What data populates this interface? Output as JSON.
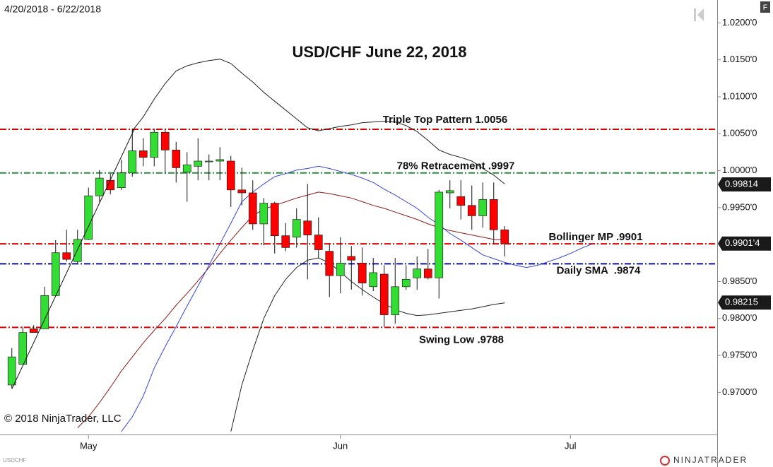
{
  "chart_data": {
    "type": "candlestick",
    "title": "USD/CHF June 22, 2018",
    "date_range": "4/20/2018 - 6/22/2018",
    "copyright": "© 2018 NinjaTrader, LLC",
    "symbol": "USDCHF",
    "logo": "NINJATRADER",
    "panel_button": "F",
    "categories": [
      null,
      null,
      null,
      null,
      null,
      null,
      null,
      "May",
      null,
      null,
      null,
      null,
      null,
      null,
      null,
      null,
      null,
      null,
      null,
      null,
      null,
      null,
      null,
      null,
      null,
      null,
      null,
      null,
      null,
      null,
      "Jun",
      null,
      null,
      null,
      null,
      null,
      null,
      null,
      null,
      null,
      null,
      null,
      null,
      null,
      null,
      null,
      null,
      null,
      null,
      null,
      null,
      "Jul",
      null,
      null,
      null,
      null,
      null,
      null,
      null,
      null,
      null,
      null,
      null,
      null,
      null
    ],
    "ylim": [
      0.9643,
      1.0231
    ],
    "yticks": [
      {
        "value": 1.02,
        "label": "1.0200'0"
      },
      {
        "value": 1.015,
        "label": "1.0150'0"
      },
      {
        "value": 1.01,
        "label": "1.0100'0"
      },
      {
        "value": 1.005,
        "label": "1.0050'0"
      },
      {
        "value": 1.0,
        "label": "1.0000'0"
      },
      {
        "value": 0.995,
        "label": "0.9950'0"
      },
      {
        "value": 0.985,
        "label": "0.9850'0"
      },
      {
        "value": 0.98,
        "label": "0.9800'0"
      },
      {
        "value": 0.975,
        "label": "0.9750'0"
      },
      {
        "value": 0.97,
        "label": "0.9700'0"
      }
    ],
    "candles": {
      "up_color": "#33dd33",
      "down_color": "#ff0000",
      "open": [
        0.971,
        0.9738,
        0.9786,
        0.9786,
        0.9831,
        0.9889,
        0.9877,
        0.9907,
        0.9966,
        0.9987,
        0.9977,
        0.9997,
        1.0027,
        1.0018,
        1.0052,
        1.0028,
        0.9998,
        1.0006,
        1.0012,
        1.0013,
        1.0013,
        0.9974,
        0.997,
        0.9928,
        0.9956,
        0.9912,
        0.991,
        0.9932,
        0.9913,
        0.9891,
        0.9858,
        0.9884,
        0.9875,
        0.9843,
        0.986,
        0.9805,
        0.9843,
        0.9855,
        0.9867,
        0.9855,
        0.997,
        0.9965,
        0.9953,
        0.9939,
        0.9961,
        0.992,
        null,
        null,
        null,
        null,
        null,
        null,
        null,
        null,
        null,
        null,
        null,
        null,
        null,
        null,
        null,
        null,
        null,
        null,
        null
      ],
      "high": [
        0.976,
        0.9789,
        0.9791,
        0.9843,
        0.9906,
        0.992,
        0.992,
        0.9977,
        1.0001,
        0.9996,
        1.0015,
        1.0057,
        1.0044,
        1.0057,
        1.0056,
        1.0039,
        1.0025,
        1.0044,
        1.0022,
        1.0032,
        1.002,
        1.0004,
        0.9987,
        0.9963,
        0.9958,
        0.9929,
        0.9949,
        0.9982,
        0.9937,
        0.9901,
        0.991,
        0.9898,
        0.9896,
        0.9882,
        0.9872,
        0.9882,
        0.9872,
        0.9884,
        0.9894,
        0.9974,
        0.9987,
        0.9987,
        0.998,
        0.9984,
        0.9984,
        0.9925,
        null,
        null,
        null,
        null,
        null,
        null,
        null,
        null,
        null,
        null,
        null,
        null,
        null,
        null,
        null,
        null,
        null,
        null,
        null
      ],
      "low": [
        0.9705,
        0.9738,
        0.9781,
        0.9786,
        0.9831,
        0.9877,
        0.9875,
        0.9906,
        0.9958,
        0.9968,
        0.9974,
        0.9992,
        1.0006,
        1.0006,
        0.9996,
        0.9984,
        0.9958,
        0.9987,
        0.9987,
        0.9987,
        0.9951,
        0.9953,
        0.992,
        0.9899,
        0.9888,
        0.9891,
        0.9896,
        0.9853,
        0.9882,
        0.9829,
        0.9834,
        0.9839,
        0.9831,
        0.9837,
        0.9789,
        0.9793,
        0.9839,
        0.9839,
        0.9853,
        0.9827,
        0.9949,
        0.9934,
        0.992,
        0.9923,
        0.9901,
        0.9884,
        null,
        null,
        null,
        null,
        null,
        null,
        null,
        null,
        null,
        null,
        null,
        null,
        null,
        null,
        null,
        null,
        null,
        null,
        null
      ],
      "close": [
        0.9748,
        0.9781,
        0.9781,
        0.9831,
        0.9889,
        0.988,
        0.9907,
        0.9966,
        0.999,
        0.9974,
        0.9997,
        1.0027,
        1.0018,
        1.0052,
        1.0028,
        1.0004,
        1.0008,
        1.0013,
        1.0013,
        1.0015,
        0.9974,
        0.997,
        0.9928,
        0.9956,
        0.9912,
        0.9896,
        0.9934,
        0.9913,
        0.9893,
        0.9858,
        0.9875,
        0.9879,
        0.9848,
        0.9862,
        0.9805,
        0.9843,
        0.9853,
        0.9867,
        0.9855,
        0.9971,
        0.9973,
        0.9953,
        0.9939,
        0.9961,
        0.992,
        0.9901,
        null,
        null,
        null,
        null,
        null,
        null,
        null,
        null,
        null,
        null,
        null,
        null,
        null,
        null,
        null,
        null,
        null,
        null,
        null
      ]
    },
    "overlays": [
      {
        "color": "#222222",
        "values": [
          null,
          null,
          null,
          null,
          null,
          null,
          null,
          null,
          null,
          null,
          null,
          1.0054,
          1.0073,
          1.0097,
          1.0118,
          1.0135,
          1.0142,
          1.0146,
          1.0149,
          1.0151,
          1.0145,
          1.0132,
          1.012,
          1.0106,
          1.0094,
          1.0082,
          1.007,
          1.0058,
          1.0054,
          1.0057,
          1.006,
          1.0062,
          1.0065,
          1.0066,
          1.0067,
          1.0066,
          1.0061,
          1.0053,
          1.0041,
          1.0028,
          1.0022,
          1.0018,
          1.0013,
          1.0003,
          0.9994,
          0.9982,
          null,
          null,
          null,
          null,
          null,
          null,
          null,
          null,
          null,
          null,
          null,
          null,
          null,
          null,
          null,
          null,
          null,
          null,
          null
        ]
      },
      {
        "color": "#222222",
        "values": [
          null,
          null,
          null,
          null,
          null,
          null,
          null,
          null,
          null,
          null,
          null,
          null,
          null,
          null,
          null,
          null,
          null,
          null,
          null,
          null,
          0.9647,
          0.971,
          0.9757,
          0.98,
          0.9831,
          0.9853,
          0.9869,
          0.9879,
          0.9882,
          0.9875,
          0.9863,
          0.985,
          0.9839,
          0.9829,
          0.982,
          0.9812,
          0.9807,
          0.9804,
          0.9805,
          0.9807,
          0.9809,
          0.9811,
          0.9813,
          0.9816,
          0.9819,
          0.9821,
          null,
          null,
          null,
          null,
          null,
          null,
          null,
          null,
          null,
          null,
          null,
          null,
          null,
          null,
          null,
          null,
          null,
          null,
          null
        ]
      },
      {
        "color": "#8b1a1a",
        "values": [
          null,
          null,
          null,
          null,
          null,
          null,
          0.9652,
          0.9667,
          0.9686,
          0.9707,
          0.9729,
          0.9748,
          0.9767,
          0.9784,
          0.98,
          0.9818,
          0.9834,
          0.9851,
          0.9869,
          0.9888,
          0.9906,
          0.9923,
          0.9939,
          0.9948,
          0.9953,
          0.9958,
          0.9963,
          0.9967,
          0.9971,
          0.9969,
          0.9966,
          0.9963,
          0.9958,
          0.9953,
          0.9949,
          0.9944,
          0.9939,
          0.9934,
          0.9928,
          0.9923,
          0.9919,
          0.9916,
          0.9913,
          0.991,
          0.9907,
          0.9906,
          null,
          null,
          null,
          null,
          null,
          null,
          null,
          null,
          null,
          null,
          null,
          null,
          null,
          null,
          null,
          null,
          null,
          null,
          null
        ]
      },
      {
        "color": "#3344dd",
        "values": [
          null,
          null,
          null,
          null,
          null,
          null,
          null,
          null,
          null,
          null,
          0.9647,
          0.9667,
          0.9695,
          0.9733,
          0.9762,
          0.9789,
          0.9817,
          0.9844,
          0.9872,
          0.9901,
          0.9929,
          0.9958,
          0.9971,
          0.9982,
          0.9992,
          0.9996,
          1.0001,
          1.0003,
          1.0006,
          1.0003,
          0.9999,
          0.9995,
          0.999,
          0.9984,
          0.9975,
          0.9967,
          0.9958,
          0.9949,
          0.9937,
          0.9927,
          0.9915,
          0.9906,
          0.9896,
          0.9886,
          0.9881,
          0.9876,
          0.9872,
          0.9869,
          0.9872,
          0.9877,
          0.9882,
          0.9888,
          0.9895,
          0.9901,
          null,
          null,
          null,
          null,
          null,
          null,
          null,
          null,
          null,
          null,
          null
        ]
      }
    ],
    "levels": [
      {
        "value": 1.0056,
        "color": "#dd0000",
        "label": "Triple Top Pattern 1.0056"
      },
      {
        "value": 0.9997,
        "color": "#2e8b3e",
        "label": "78% Retracement .9997"
      },
      {
        "value": 0.9901,
        "color": "#dd0000",
        "label": "Bollinger MP .9901"
      },
      {
        "value": 0.9874,
        "color": "#1010a0",
        "label": "Daily SMA  .9874"
      },
      {
        "value": 0.9788,
        "color": "#dd0000",
        "label": "Swing Low .9788"
      }
    ],
    "price_markers": [
      {
        "value": 0.99814,
        "label": "0.99814"
      },
      {
        "value": 0.99014,
        "label": "0.9901'4"
      },
      {
        "value": 0.98215,
        "label": "0.98215"
      }
    ]
  }
}
